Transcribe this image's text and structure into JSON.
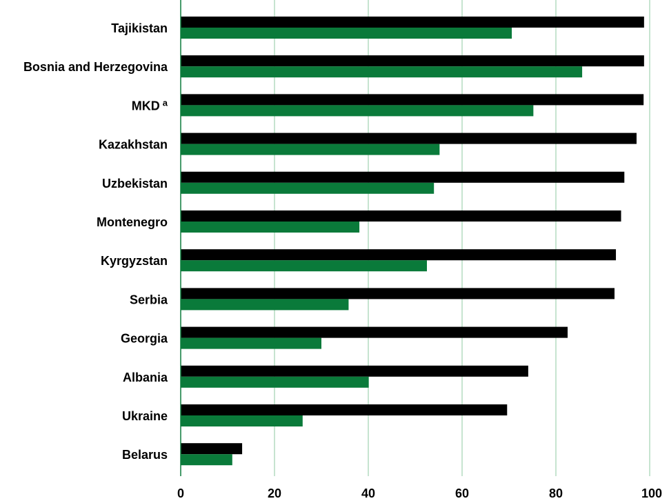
{
  "chart_data": {
    "type": "bar",
    "orientation": "horizontal",
    "title": "",
    "xlabel": "",
    "ylabel": "",
    "xlim": [
      0,
      100
    ],
    "xticks": [
      0,
      20,
      40,
      60,
      80,
      100
    ],
    "grid": "vertical",
    "legend": "none",
    "categories": [
      "Tajikistan",
      "Bosnia and Herzegovina",
      "MKD",
      "Kazakhstan",
      "Uzbekistan",
      "Montenegro",
      "Kyrgyzstan",
      "Serbia",
      "Georgia",
      "Albania",
      "Ukraine",
      "Belarus"
    ],
    "category_superscripts": [
      "",
      "",
      "a",
      "",
      "",
      "",
      "",
      "",
      "",
      "",
      "",
      ""
    ],
    "series": [
      {
        "color": "#000000",
        "values": [
          98.8,
          98.8,
          98.7,
          97.2,
          94.6,
          93.9,
          92.8,
          92.5,
          82.5,
          74.1,
          69.6,
          13.1
        ]
      },
      {
        "color": "#0a7a3a",
        "values": [
          70.6,
          85.6,
          75.2,
          55.2,
          54.0,
          38.1,
          52.5,
          35.8,
          30.0,
          40.1,
          26.0,
          11.0
        ]
      }
    ],
    "gridline_color": "#8cc9a0",
    "axis_color": "#0a7a3a"
  }
}
